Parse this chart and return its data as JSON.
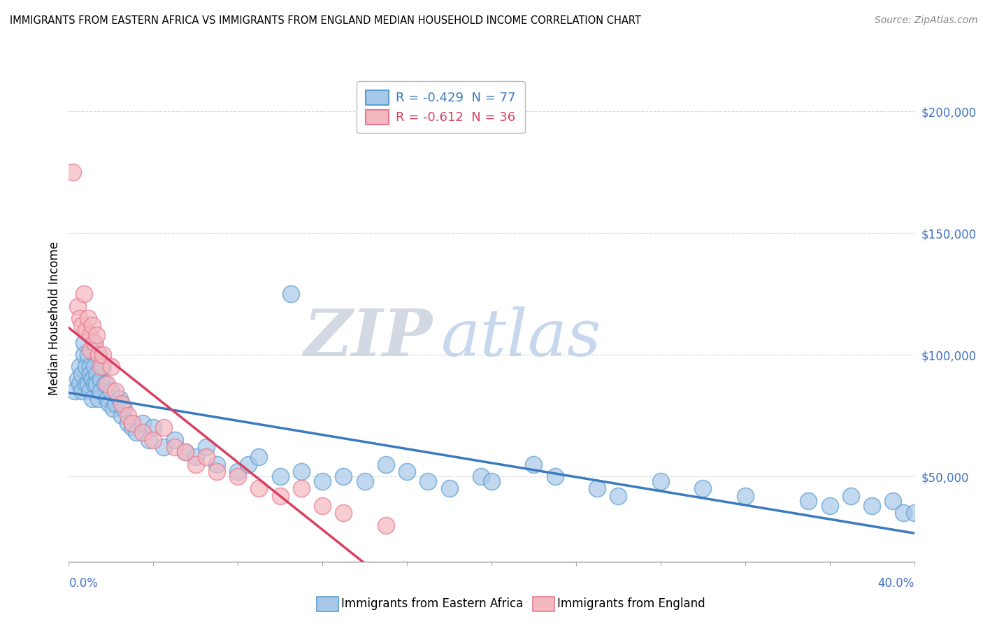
{
  "title": "IMMIGRANTS FROM EASTERN AFRICA VS IMMIGRANTS FROM ENGLAND MEDIAN HOUSEHOLD INCOME CORRELATION CHART",
  "source": "Source: ZipAtlas.com",
  "ylabel": "Median Household Income",
  "xlim": [
    0.0,
    40.0
  ],
  "ylim": [
    15000,
    215000
  ],
  "yticks": [
    50000,
    100000,
    150000,
    200000
  ],
  "ytick_labels": [
    "$50,000",
    "$100,000",
    "$150,000",
    "$200,000"
  ],
  "series1_name": "Immigrants from Eastern Africa",
  "series1_color": "#a8c8e8",
  "series1_edge_color": "#5a9fd4",
  "series1_line_color": "#3a7abf",
  "series1_R": -0.429,
  "series1_N": 77,
  "series2_name": "Immigrants from England",
  "series2_color": "#f4b8c0",
  "series2_edge_color": "#e87a90",
  "series2_line_color": "#d94060",
  "series2_R": -0.612,
  "series2_N": 36,
  "watermark_ZIP": "ZIP",
  "watermark_atlas": "atlas",
  "background_color": "#ffffff",
  "grid_color": "#d8d8d8",
  "series1_x": [
    0.3,
    0.4,
    0.5,
    0.5,
    0.6,
    0.6,
    0.7,
    0.7,
    0.8,
    0.8,
    0.9,
    0.9,
    1.0,
    1.0,
    1.0,
    1.1,
    1.1,
    1.2,
    1.2,
    1.2,
    1.3,
    1.3,
    1.4,
    1.4,
    1.5,
    1.5,
    1.6,
    1.7,
    1.8,
    1.9,
    2.0,
    2.1,
    2.2,
    2.4,
    2.5,
    2.6,
    2.8,
    3.0,
    3.2,
    3.5,
    3.8,
    4.0,
    4.5,
    5.0,
    5.5,
    6.0,
    6.5,
    7.0,
    8.0,
    8.5,
    9.0,
    10.0,
    11.0,
    12.0,
    13.0,
    14.0,
    15.0,
    16.0,
    17.0,
    18.0,
    19.5,
    20.0,
    22.0,
    23.0,
    25.0,
    26.0,
    28.0,
    30.0,
    32.0,
    35.0,
    36.0,
    37.0,
    38.0,
    39.0,
    39.5,
    40.0,
    10.5
  ],
  "series1_y": [
    85000,
    90000,
    88000,
    95000,
    92000,
    85000,
    105000,
    100000,
    88000,
    95000,
    100000,
    88000,
    95000,
    85000,
    92000,
    90000,
    82000,
    88000,
    105000,
    95000,
    92000,
    88000,
    100000,
    82000,
    90000,
    85000,
    95000,
    88000,
    82000,
    80000,
    85000,
    78000,
    80000,
    82000,
    75000,
    78000,
    72000,
    70000,
    68000,
    72000,
    65000,
    70000,
    62000,
    65000,
    60000,
    58000,
    62000,
    55000,
    52000,
    55000,
    58000,
    50000,
    52000,
    48000,
    50000,
    48000,
    55000,
    52000,
    48000,
    45000,
    50000,
    48000,
    55000,
    50000,
    45000,
    42000,
    48000,
    45000,
    42000,
    40000,
    38000,
    42000,
    38000,
    40000,
    35000,
    35000,
    125000
  ],
  "series2_x": [
    0.2,
    0.4,
    0.5,
    0.6,
    0.7,
    0.8,
    0.9,
    1.0,
    1.0,
    1.1,
    1.2,
    1.3,
    1.4,
    1.5,
    1.6,
    1.8,
    2.0,
    2.2,
    2.5,
    2.8,
    3.0,
    3.5,
    4.0,
    4.5,
    5.0,
    5.5,
    6.0,
    6.5,
    7.0,
    8.0,
    9.0,
    10.0,
    11.0,
    12.0,
    13.0,
    15.0
  ],
  "series2_y": [
    175000,
    120000,
    115000,
    112000,
    125000,
    110000,
    115000,
    108000,
    102000,
    112000,
    105000,
    108000,
    100000,
    95000,
    100000,
    88000,
    95000,
    85000,
    80000,
    75000,
    72000,
    68000,
    65000,
    70000,
    62000,
    60000,
    55000,
    58000,
    52000,
    50000,
    45000,
    42000,
    45000,
    38000,
    35000,
    30000
  ]
}
